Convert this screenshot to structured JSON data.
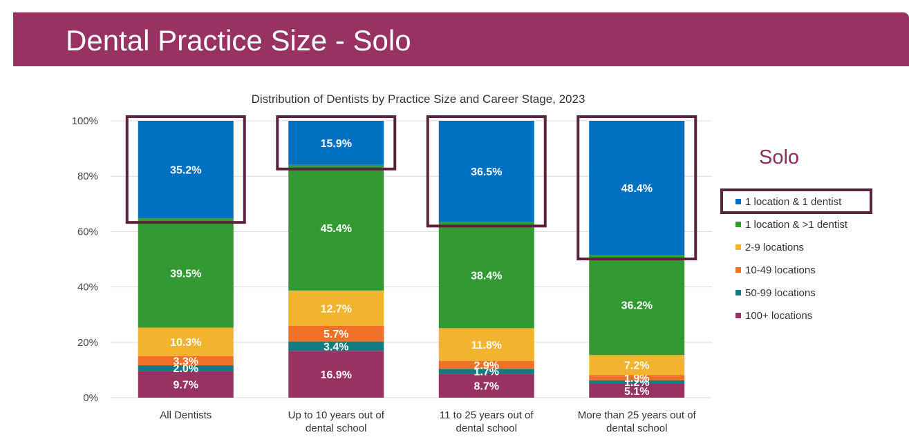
{
  "slide": {
    "title": "Dental Practice Size - Solo"
  },
  "legend": {
    "heading": "Solo"
  },
  "colors": {
    "header": "#983263",
    "highlight_box": "#5c2340",
    "axis_text": "#333333"
  },
  "chart_data": {
    "type": "bar",
    "stacked": true,
    "title": "Distribution of Dentists by Practice Size and Career Stage, 2023",
    "xlabel": "",
    "ylabel": "",
    "ylim": [
      0,
      100
    ],
    "yticks": [
      "0%",
      "20%",
      "40%",
      "60%",
      "80%",
      "100%"
    ],
    "grid": true,
    "legend_position": "right",
    "categories": [
      [
        "All Dentists"
      ],
      [
        "Up to 10 years out of",
        "dental school"
      ],
      [
        "11 to 25 years out of",
        "dental school"
      ],
      [
        "More than 25 years out of",
        "dental school"
      ]
    ],
    "series": [
      {
        "name": "100+ locations",
        "color": "#983263",
        "values": [
          9.7,
          16.9,
          8.7,
          5.1
        ],
        "labels": [
          "9.7%",
          "16.9%",
          "8.7%",
          "5.1%"
        ]
      },
      {
        "name": "50-99 locations",
        "color": "#0e7c80",
        "values": [
          2.0,
          3.4,
          1.7,
          1.2
        ],
        "labels": [
          "2.0%",
          "3.4%",
          "1.7%",
          "1.2%"
        ]
      },
      {
        "name": "10-49 locations",
        "color": "#f07027",
        "values": [
          3.3,
          5.7,
          2.9,
          1.9
        ],
        "labels": [
          "3.3%",
          "5.7%",
          "2.9%",
          "1.9%"
        ]
      },
      {
        "name": "2-9 locations",
        "color": "#f2b32e",
        "values": [
          10.3,
          12.7,
          11.8,
          7.2
        ],
        "labels": [
          "10.3%",
          "12.7%",
          "11.8%",
          "7.2%"
        ]
      },
      {
        "name": "1 location & >1 dentist",
        "color": "#339933",
        "values": [
          39.5,
          45.4,
          38.4,
          36.2
        ],
        "labels": [
          "39.5%",
          "45.4%",
          "38.4%",
          "36.2%"
        ]
      },
      {
        "name": "1 location & 1 dentist",
        "color": "#0070c0",
        "values": [
          35.2,
          15.9,
          36.5,
          48.4
        ],
        "labels": [
          "35.2%",
          "15.9%",
          "36.5%",
          "48.4%"
        ]
      }
    ],
    "highlighted_series": "1 location & 1 dentist"
  }
}
